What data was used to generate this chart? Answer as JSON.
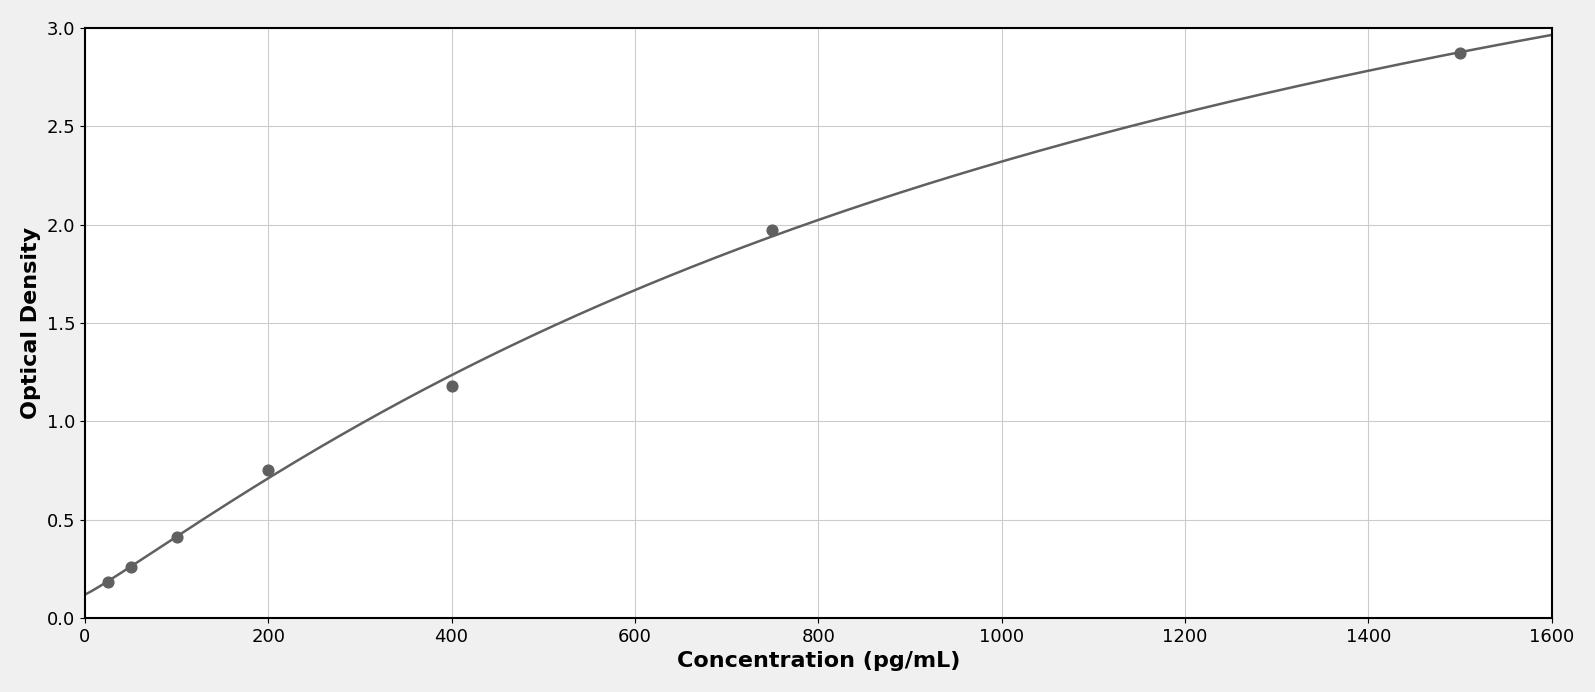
{
  "x_data": [
    25,
    50,
    100,
    200,
    400,
    750,
    1500
  ],
  "y_data": [
    0.18,
    0.26,
    0.41,
    0.75,
    1.18,
    1.97,
    2.87
  ],
  "xlabel": "Concentration (pg/mL)",
  "ylabel": "Optical Density",
  "xlim": [
    0,
    1600
  ],
  "ylim": [
    0,
    3
  ],
  "xticks": [
    0,
    200,
    400,
    600,
    800,
    1000,
    1200,
    1400,
    1600
  ],
  "yticks": [
    0,
    0.5,
    1.0,
    1.5,
    2.0,
    2.5,
    3.0
  ],
  "dot_color": "#606060",
  "line_color": "#606060",
  "grid_color": "#cccccc",
  "background_color": "#ffffff",
  "fig_background": "#f0f0f0",
  "xlabel_fontsize": 16,
  "ylabel_fontsize": 16,
  "tick_fontsize": 13,
  "line_width": 1.8,
  "dot_size": 60
}
